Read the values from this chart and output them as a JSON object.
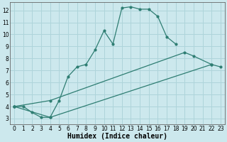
{
  "bg_color": "#cce8ed",
  "line_color": "#2e7d72",
  "grid_color": "#aed4da",
  "xlabel": "Humidex (Indice chaleur)",
  "xlabel_fontsize": 7,
  "ylim": [
    2.5,
    12.7
  ],
  "xlim": [
    -0.5,
    23.5
  ],
  "yticks": [
    3,
    4,
    5,
    6,
    7,
    8,
    9,
    10,
    11,
    12
  ],
  "xticks": [
    0,
    1,
    2,
    3,
    4,
    5,
    6,
    7,
    8,
    9,
    10,
    11,
    12,
    13,
    14,
    15,
    16,
    17,
    18,
    19,
    20,
    21,
    22,
    23
  ],
  "series1_x": [
    0,
    1,
    2,
    3,
    4,
    5,
    6,
    7,
    8,
    9,
    10,
    11,
    12,
    13,
    14,
    15,
    16,
    17,
    18
  ],
  "series1_y": [
    4.0,
    4.0,
    3.5,
    3.1,
    3.1,
    4.5,
    6.5,
    7.3,
    7.5,
    8.7,
    10.3,
    9.2,
    12.2,
    12.3,
    12.1,
    12.1,
    11.5,
    9.8,
    9.2
  ],
  "series2_x": [
    0,
    4,
    19,
    20,
    22
  ],
  "series2_y": [
    4.0,
    4.5,
    8.5,
    8.2,
    7.5
  ],
  "series3_x": [
    0,
    4,
    22,
    23
  ],
  "series3_y": [
    4.0,
    3.1,
    7.5,
    7.3
  ]
}
